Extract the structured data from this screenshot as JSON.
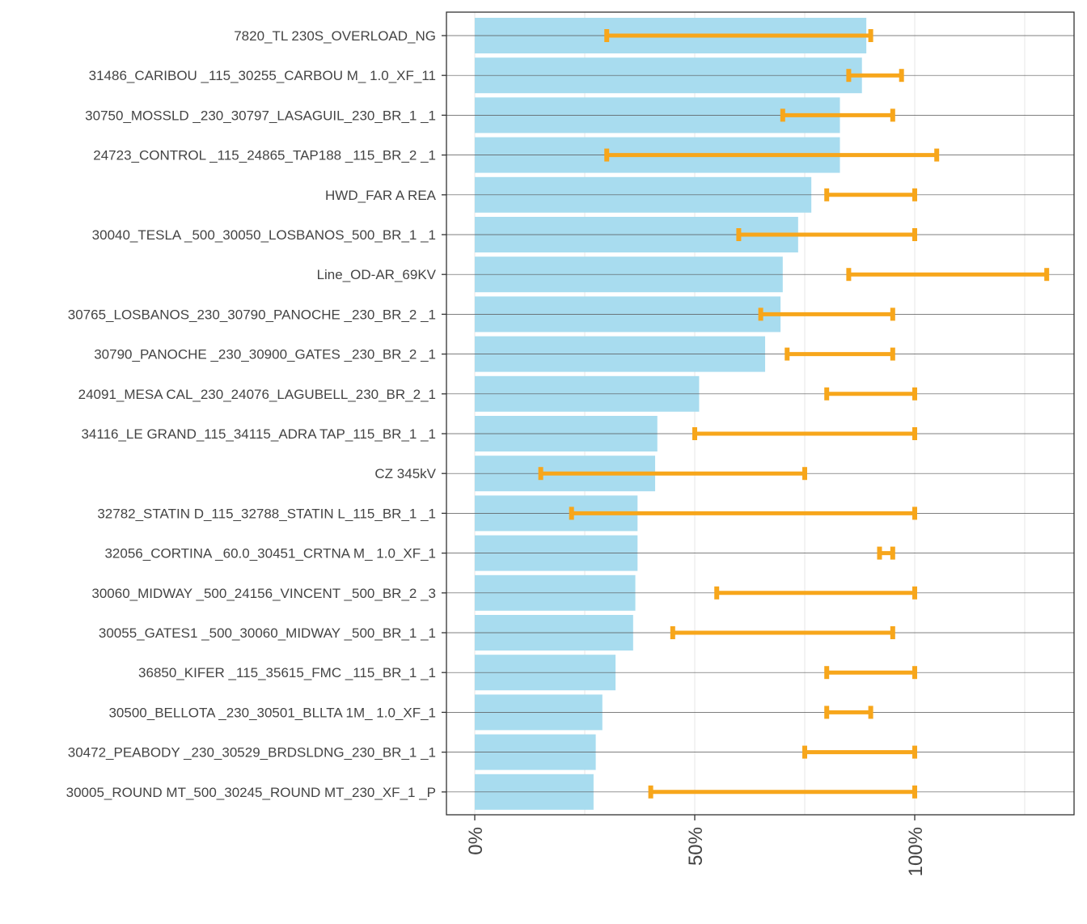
{
  "chart_data": {
    "type": "bar",
    "orientation": "horizontal",
    "title": "",
    "xlabel": "",
    "ylabel": "",
    "xlim": [
      -0.06,
      1.36
    ],
    "xticks": [
      {
        "value": 0,
        "label": "0%"
      },
      {
        "value": 0.5,
        "label": "50%"
      },
      {
        "value": 1.0,
        "label": "100%"
      }
    ],
    "categories": [
      "7820_TL 230S_OVERLOAD_NG",
      "31486_CARIBOU _115_30255_CARBOU M_ 1.0_XF_11",
      "30750_MOSSLD  _230_30797_LASAGUIL_230_BR_1 _1",
      "24723_CONTROL _115_24865_TAP188  _115_BR_2 _1",
      "HWD_FAR A REA",
      "30040_TESLA   _500_30050_LOSBANOS_500_BR_1 _1",
      "Line_OD-AR_69KV",
      "30765_LOSBANOS_230_30790_PANOCHE _230_BR_2 _1",
      "30790_PANOCHE _230_30900_GATES   _230_BR_2 _1",
      "24091_MESA CAL_230_24076_LAGUBELL_230_BR_2_1",
      "34116_LE GRAND_115_34115_ADRA TAP_115_BR_1 _1",
      "CZ 345kV",
      "32782_STATIN D_115_32788_STATIN L_115_BR_1 _1",
      "32056_CORTINA _60.0_30451_CRTNA  M_ 1.0_XF_1",
      "30060_MIDWAY  _500_24156_VINCENT _500_BR_2 _3",
      "30055_GATES1  _500_30060_MIDWAY  _500_BR_1 _1",
      "36850_KIFER   _115_35615_FMC     _115_BR_1 _1",
      "30500_BELLOTA _230_30501_BLLTA 1M_ 1.0_XF_1",
      "30472_PEABODY _230_30529_BRDSLDNG_230_BR_1 _1",
      "30005_ROUND MT_500_30245_ROUND MT_230_XF_1 _P"
    ],
    "values": [
      0.89,
      0.88,
      0.83,
      0.83,
      0.765,
      0.735,
      0.7,
      0.695,
      0.66,
      0.51,
      0.415,
      0.41,
      0.37,
      0.37,
      0.365,
      0.36,
      0.32,
      0.29,
      0.275,
      0.27
    ],
    "error_low": [
      0.3,
      0.85,
      0.7,
      0.3,
      0.8,
      0.6,
      0.85,
      0.65,
      0.71,
      0.8,
      0.5,
      0.15,
      0.22,
      0.92,
      0.55,
      0.45,
      0.8,
      0.8,
      0.75,
      0.4
    ],
    "error_high": [
      0.9,
      0.97,
      0.95,
      1.05,
      1.0,
      1.0,
      1.3,
      0.95,
      0.95,
      1.0,
      1.0,
      0.75,
      1.0,
      0.95,
      1.0,
      0.95,
      1.0,
      0.9,
      1.0,
      1.0
    ],
    "bar_color": "#a8dcef",
    "error_color": "#f7a61b",
    "grid": true
  }
}
